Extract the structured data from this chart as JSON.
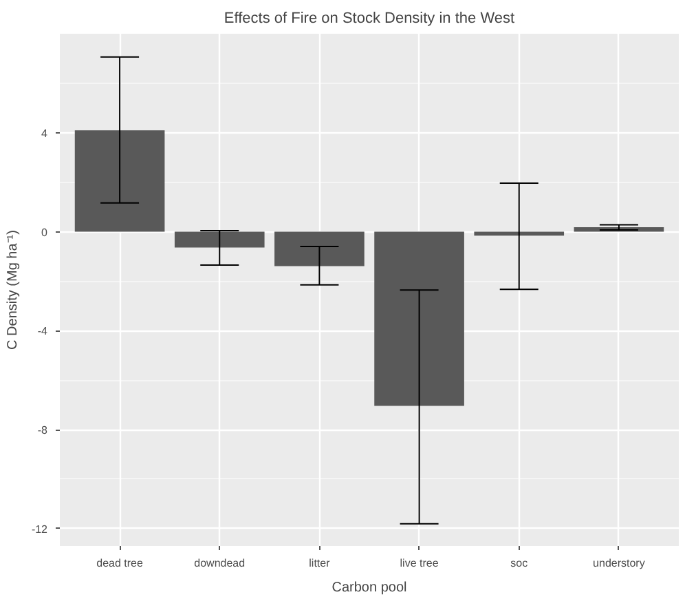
{
  "chart_data": {
    "type": "bar",
    "title": "Effects of Fire on Stock Density in the West",
    "xlabel": "Carbon pool",
    "ylabel": "C Density (Mg ha⁻¹)",
    "categories": [
      "dead tree",
      "downdead",
      "litter",
      "live tree",
      "soc",
      "understory"
    ],
    "values": [
      4.1,
      -0.64,
      -1.39,
      -7.04,
      -0.16,
      0.18
    ],
    "errors": [
      [
        1.16,
        7.06
      ],
      [
        -1.35,
        0.04
      ],
      [
        -2.15,
        -0.6
      ],
      [
        -11.8,
        -2.36
      ],
      [
        -2.33,
        1.96
      ],
      [
        0.07,
        0.28
      ]
    ],
    "color": "#595959",
    "ylim": [
      -12.7,
      8.0
    ],
    "yticks": [
      -12,
      -8,
      -4,
      0,
      4
    ],
    "grid": true
  }
}
